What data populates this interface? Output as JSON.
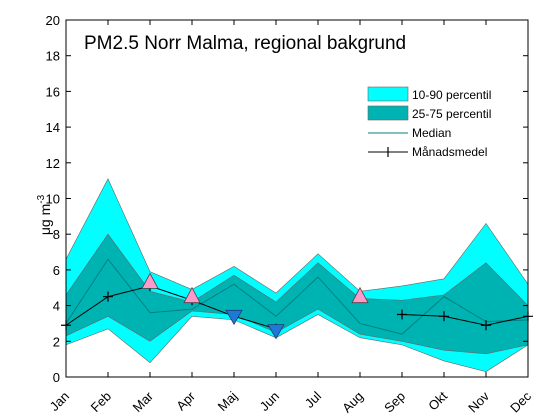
{
  "chart_data": {
    "type": "area",
    "title": "PM2.5 Norr Malma, regional bakgrund",
    "ylabel": "μg m",
    "ylabel_exp": "-3",
    "ylim": [
      0,
      20
    ],
    "yticks": [
      "0",
      "2",
      "4",
      "6",
      "8",
      "10",
      "12",
      "14",
      "16",
      "18",
      "20"
    ],
    "categories": [
      "Jan",
      "Feb",
      "Mar",
      "Apr",
      "Maj",
      "Jun",
      "Jul",
      "Aug",
      "Sep",
      "Okt",
      "Nov",
      "Dec"
    ],
    "grid": false,
    "legend_position": "right",
    "series": [
      {
        "name": "10-90 percentil",
        "kind": "band",
        "color": "#00ffff",
        "lower": [
          1.8,
          2.7,
          0.8,
          3.4,
          3.2,
          2.2,
          3.5,
          2.2,
          1.8,
          0.9,
          0.3,
          1.8
        ],
        "upper": [
          6.6,
          11.1,
          5.9,
          4.9,
          6.2,
          4.7,
          6.9,
          4.8,
          5.1,
          5.5,
          8.6,
          5.2
        ]
      },
      {
        "name": "25-75 percentil",
        "kind": "band",
        "color": "#00b3b3",
        "lower": [
          2.3,
          3.4,
          2.0,
          3.7,
          3.5,
          2.5,
          3.8,
          2.4,
          2.0,
          1.5,
          1.3,
          1.8
        ],
        "upper": [
          4.6,
          8.0,
          4.8,
          4.2,
          5.7,
          4.2,
          6.4,
          4.4,
          4.3,
          4.6,
          6.4,
          4.0
        ]
      },
      {
        "name": "Median",
        "kind": "line",
        "color": "#008080",
        "values": [
          3.0,
          6.6,
          3.6,
          3.8,
          5.2,
          3.4,
          5.6,
          3.0,
          2.4,
          4.5,
          3.1,
          3.2
        ]
      },
      {
        "name": "Månadsmedel",
        "kind": "line-marker",
        "color": "#000000",
        "values": [
          2.9,
          4.5,
          5.1,
          4.3,
          3.4,
          2.7,
          null,
          null,
          3.5,
          3.4,
          2.9,
          3.4
        ]
      }
    ],
    "marker_up": {
      "color": "#ff99cc",
      "points": [
        {
          "x": "Mar",
          "y": 5.3
        },
        {
          "x": "Apr",
          "y": 4.5
        },
        {
          "x": "Aug",
          "y": 4.5
        }
      ]
    },
    "marker_down": {
      "color": "#1e78d6",
      "points": [
        {
          "x": "Maj",
          "y": 3.4
        },
        {
          "x": "Jun",
          "y": 2.6
        }
      ]
    }
  }
}
